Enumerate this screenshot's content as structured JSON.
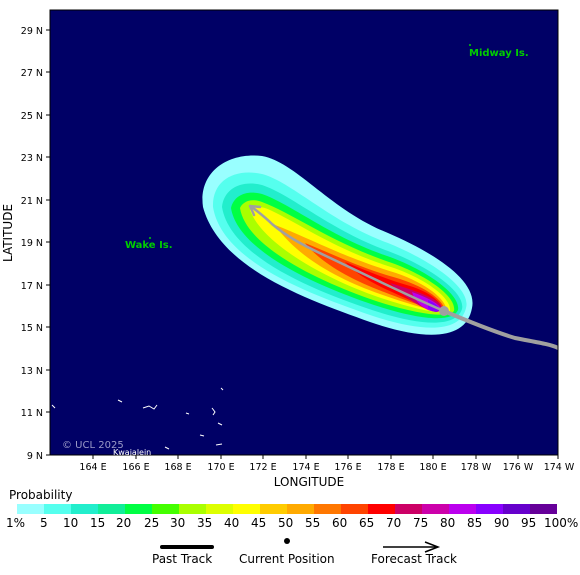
{
  "map": {
    "latitude_label": "LATITUDE",
    "longitude_label": "LONGITUDE",
    "lat_ticks": [
      "29 N",
      "27 N",
      "25 N",
      "23 N",
      "21 N",
      "19 N",
      "17 N",
      "15 N",
      "13 N",
      "11 N",
      "9 N"
    ],
    "lon_ticks": [
      "164 E",
      "166 E",
      "168 E",
      "170 E",
      "172 E",
      "174 E",
      "176 E",
      "178 E",
      "180 E",
      "178 W",
      "176 W",
      "174 W"
    ],
    "places": {
      "midway": "Midway Is.",
      "wake": "Wake Is.",
      "kwajalein": "Kwajalein"
    },
    "copyright": "© UCL 2025",
    "colors": {
      "ocean": "#000066",
      "land_label": "#00cc00",
      "track": "#a0a0a0"
    }
  },
  "legend": {
    "title": "Probability",
    "scale_labels": [
      "1%",
      "5",
      "10",
      "15",
      "20",
      "25",
      "30",
      "35",
      "40",
      "45",
      "50",
      "55",
      "60",
      "65",
      "70",
      "75",
      "80",
      "85",
      "90",
      "95",
      "100%"
    ],
    "scale_colors": [
      "#99ffff",
      "#55ffee",
      "#22eecc",
      "#11ee99",
      "#00ff44",
      "#44ff00",
      "#aaff00",
      "#ddff00",
      "#ffff00",
      "#ffcc00",
      "#ffaa00",
      "#ff7700",
      "#ff4400",
      "#ff0000",
      "#cc0066",
      "#cc00aa",
      "#bb00ee",
      "#8800ff",
      "#6600cc",
      "#660099"
    ],
    "past_track": "Past Track",
    "current_position": "Current Position",
    "forecast_track": "Forecast Track"
  }
}
